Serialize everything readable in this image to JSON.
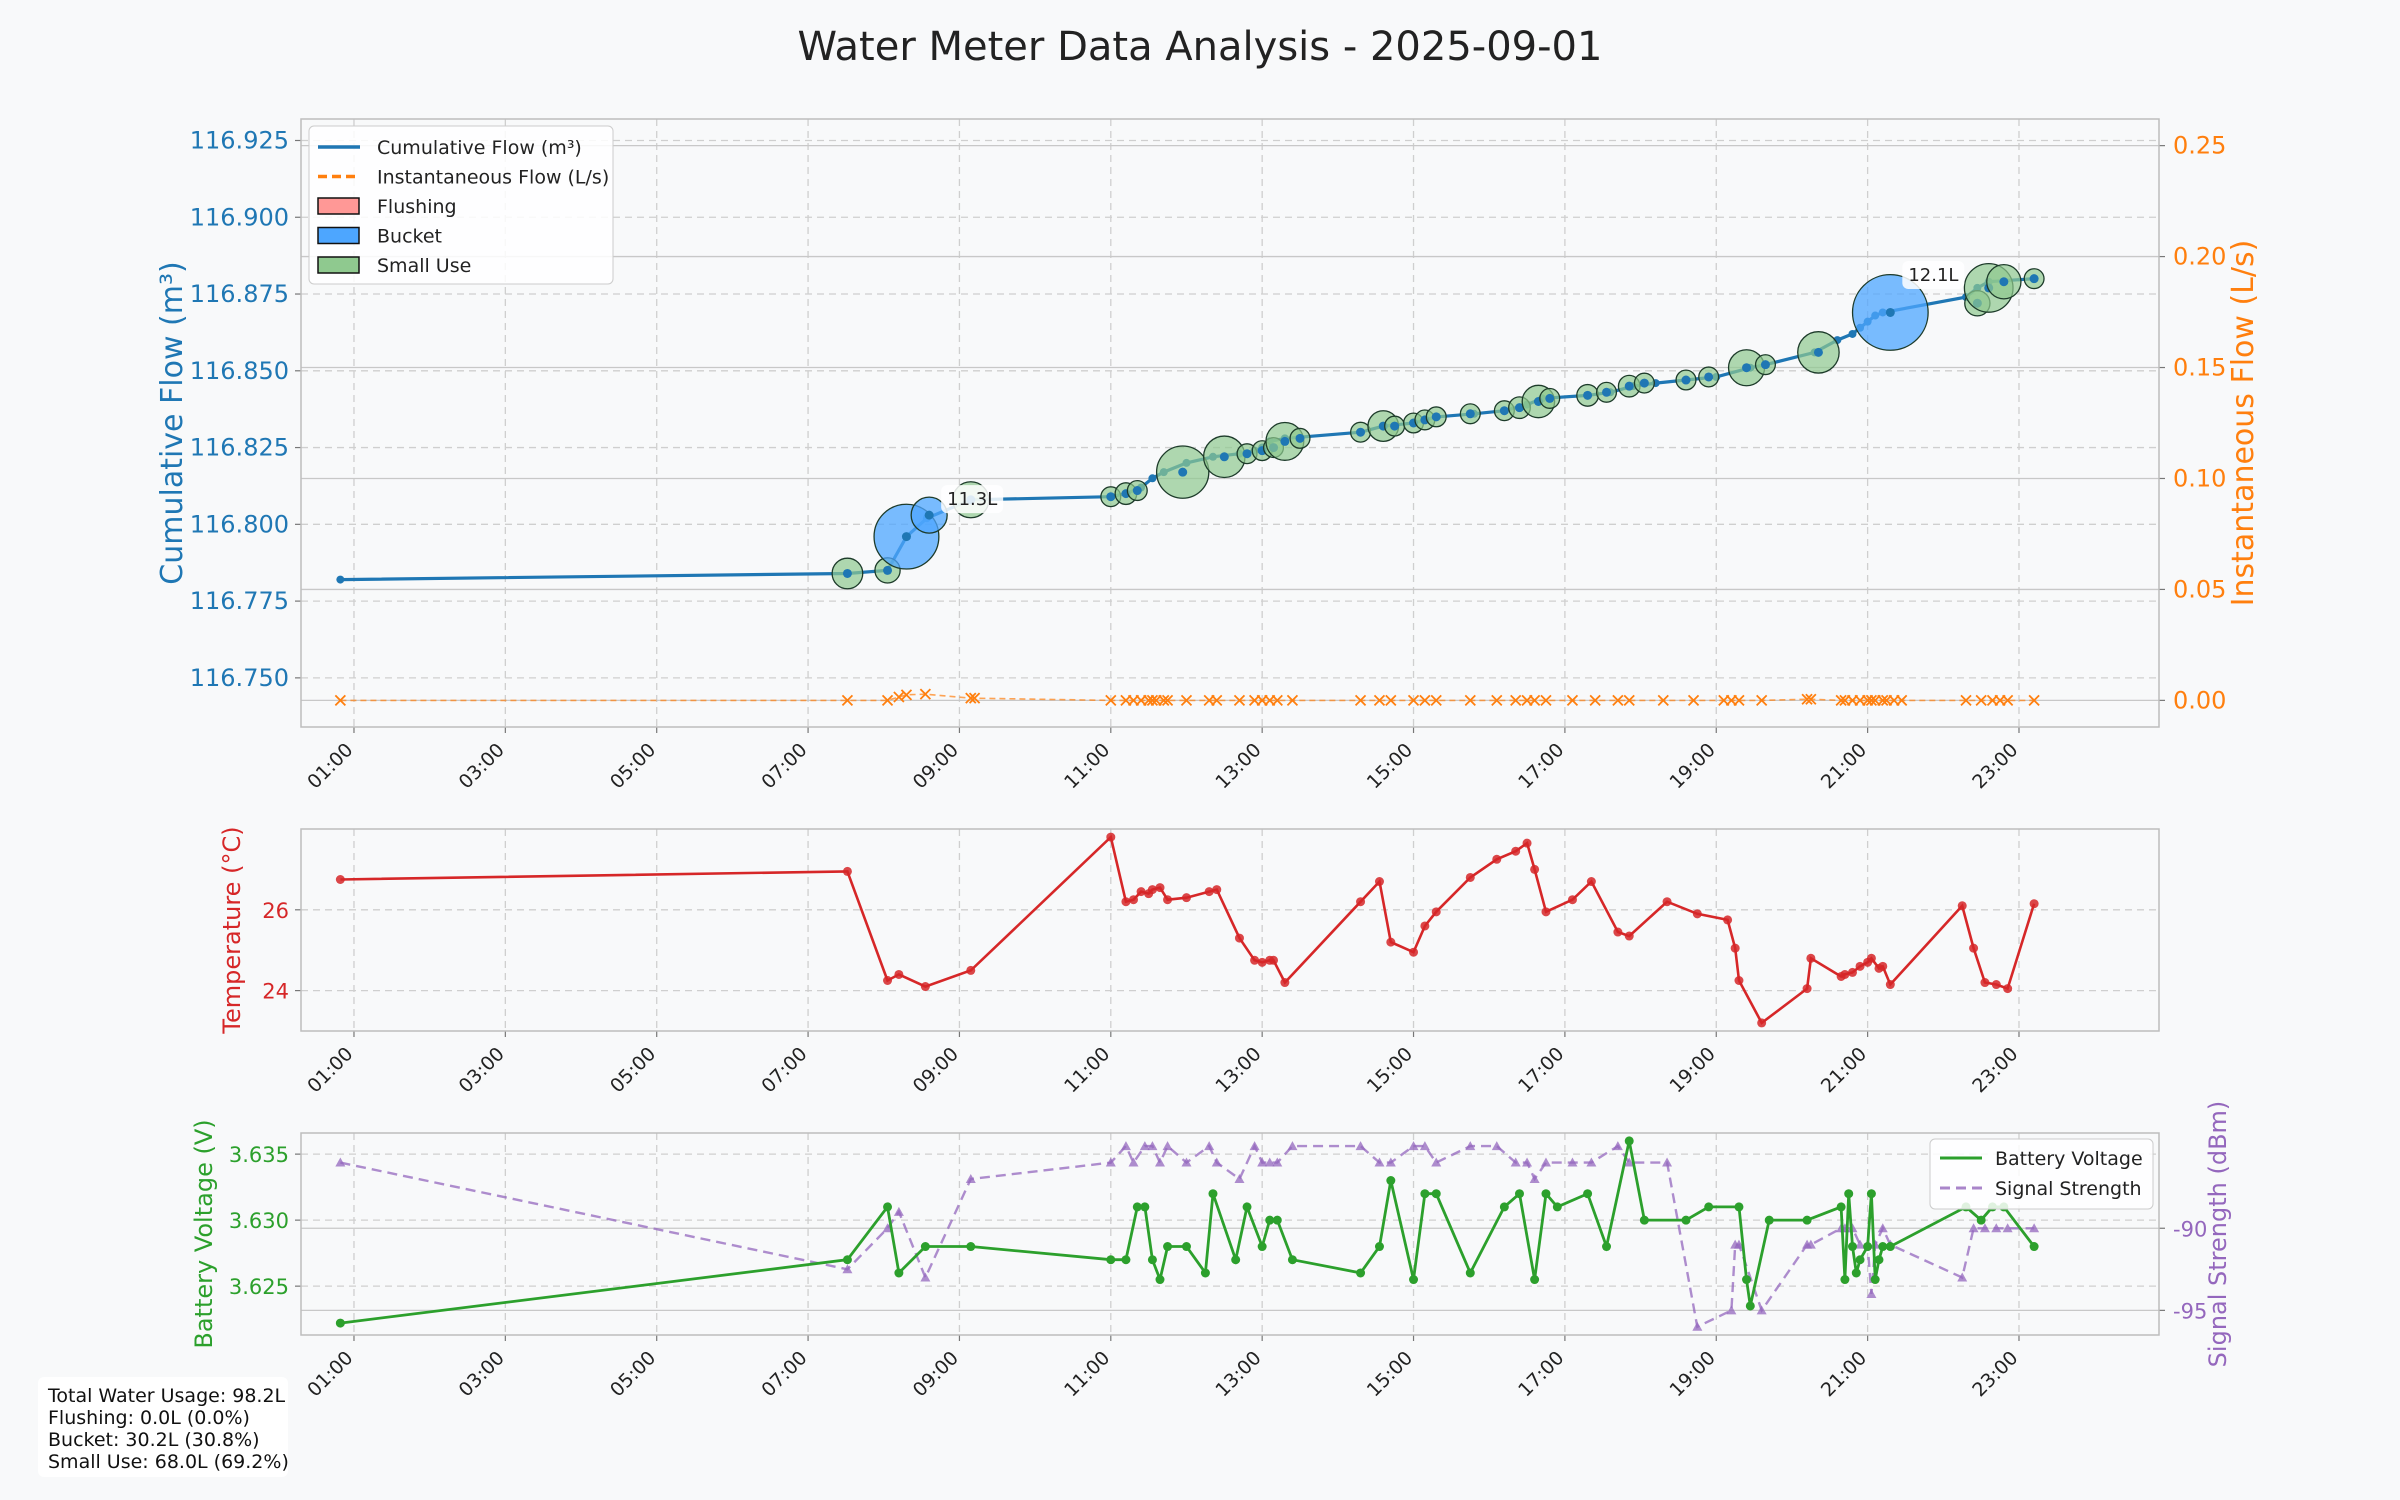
{
  "title": "Water Meter Data Analysis - 2025-09-01",
  "colors": {
    "cumulative": "#1f77b4",
    "instant": "#ff7f0e",
    "temperature": "#d62728",
    "battery": "#2ca02c",
    "signal": "#9467bd",
    "flushing": "#ff9896",
    "bucket": "#4da6ff",
    "small_use": "#8fc98f",
    "background": "#f8f9fa"
  },
  "chart_data": [
    {
      "type": "line",
      "name": "flow",
      "xlabel": "",
      "x_ticks": [
        "01:00",
        "03:00",
        "05:00",
        "07:00",
        "09:00",
        "11:00",
        "13:00",
        "15:00",
        "17:00",
        "19:00",
        "21:00",
        "23:00"
      ],
      "xlim": [
        0.3,
        24.85
      ],
      "ylabel": "Cumulative Flow (m³)",
      "ylim": [
        116.734,
        116.932
      ],
      "y_ticks": [
        "116.750",
        "116.775",
        "116.800",
        "116.825",
        "116.850",
        "116.875",
        "116.900",
        "116.925"
      ],
      "y2label": "Instantaneous Flow (L/s)",
      "y2lim": [
        -0.012,
        0.262
      ],
      "y2_ticks": [
        "0.00",
        "0.05",
        "0.10",
        "0.15",
        "0.20",
        "0.25"
      ],
      "legend": [
        "Cumulative Flow (m³)",
        "Instantaneous Flow (L/s)",
        "Flushing",
        "Bucket",
        "Small Use"
      ],
      "legend_position": "upper left",
      "series": [
        {
          "name": "Cumulative Flow (m³)",
          "x": [
            0.82,
            7.52,
            8.05,
            8.3,
            8.57,
            9.15,
            11.0,
            11.2,
            11.4,
            11.55,
            11.7,
            12.0,
            12.35,
            12.7,
            12.9,
            13.0,
            13.1,
            13.3,
            14.3,
            14.6,
            15.0,
            15.3,
            15.8,
            16.2,
            16.5,
            16.7,
            17.3,
            17.6,
            17.9,
            18.2,
            18.6,
            19.0,
            19.45,
            19.65,
            20.3,
            20.6,
            20.8,
            20.9,
            21.0,
            21.1,
            21.2,
            22.3,
            22.45,
            22.6,
            23.2
          ],
          "values": [
            116.782,
            116.784,
            116.785,
            116.796,
            116.802,
            116.808,
            116.809,
            116.81,
            116.812,
            116.815,
            116.817,
            116.82,
            116.822,
            116.823,
            116.824,
            116.825,
            116.827,
            116.828,
            116.83,
            116.832,
            116.833,
            116.835,
            116.836,
            116.837,
            116.839,
            116.841,
            116.842,
            116.843,
            116.845,
            116.846,
            116.847,
            116.848,
            116.851,
            116.852,
            116.856,
            116.86,
            116.862,
            116.864,
            116.866,
            116.868,
            116.869,
            116.874,
            116.877,
            116.879,
            116.88
          ]
        },
        {
          "name": "Instantaneous Flow (L/s)",
          "axis": "right",
          "marker": "x",
          "x": [
            0.82,
            7.52,
            8.05,
            8.2,
            8.3,
            8.55,
            9.15,
            9.2,
            11.0,
            11.2,
            11.3,
            11.4,
            11.5,
            11.55,
            11.6,
            11.7,
            11.75,
            12.0,
            12.3,
            12.4,
            12.7,
            12.9,
            13.0,
            13.1,
            13.2,
            13.4,
            14.3,
            14.55,
            14.7,
            15.0,
            15.15,
            15.3,
            15.75,
            16.1,
            16.35,
            16.5,
            16.6,
            16.75,
            17.1,
            17.4,
            17.7,
            17.85,
            18.3,
            18.7,
            19.1,
            19.2,
            19.3,
            19.6,
            20.2,
            20.25,
            20.65,
            20.7,
            20.8,
            20.9,
            21.0,
            21.05,
            21.1,
            21.2,
            21.25,
            21.35,
            21.45,
            22.3,
            22.5,
            22.65,
            22.75,
            22.85,
            23.2
          ],
          "values": [
            0.0,
            0.0,
            0.0,
            0.0015,
            0.0025,
            0.0028,
            0.001,
            0.001,
            0.0,
            0.0,
            0.0,
            0.0,
            0.0,
            0.0,
            0.0,
            0.0,
            0.0,
            0.0,
            0.0,
            0.0,
            0.0,
            0.0,
            0.0,
            0.0,
            0.0,
            0.0,
            0.0,
            0.0,
            0.0,
            0.0,
            0.0,
            0.0,
            0.0,
            0.0,
            0.0,
            0.0,
            0.0,
            0.0,
            0.0,
            0.0,
            0.0,
            0.0,
            0.0,
            0.0,
            0.0,
            0.0,
            0.0,
            0.0,
            0.0005,
            0.0005,
            0.0,
            0.0,
            0.0,
            0.0,
            0.0,
            0.0,
            0.0,
            0.0,
            0.0,
            0.0,
            0.0,
            0.0,
            0.0,
            0.0,
            0.0,
            0.0,
            0.0
          ]
        }
      ],
      "usage_events": [
        {
          "x": 7.52,
          "y": 116.784,
          "type": "small_use",
          "size": 0.85
        },
        {
          "x": 8.05,
          "y": 116.785,
          "type": "small_use",
          "size": 0.7
        },
        {
          "x": 8.3,
          "y": 116.796,
          "type": "bucket",
          "size": 1.8
        },
        {
          "x": 8.6,
          "y": 116.803,
          "type": "bucket",
          "size": 1.0
        },
        {
          "x": 9.15,
          "y": 116.808,
          "type": "small_use",
          "size": 1.0
        },
        {
          "x": 11.0,
          "y": 116.809,
          "type": "small_use",
          "size": 0.55
        },
        {
          "x": 11.2,
          "y": 116.81,
          "type": "small_use",
          "size": 0.6
        },
        {
          "x": 11.35,
          "y": 116.811,
          "type": "small_use",
          "size": 0.55
        },
        {
          "x": 11.95,
          "y": 116.817,
          "type": "small_use",
          "size": 1.45
        },
        {
          "x": 12.5,
          "y": 116.822,
          "type": "small_use",
          "size": 1.15
        },
        {
          "x": 12.8,
          "y": 116.823,
          "type": "small_use",
          "size": 0.55
        },
        {
          "x": 13.0,
          "y": 116.824,
          "type": "small_use",
          "size": 0.55
        },
        {
          "x": 13.15,
          "y": 116.825,
          "type": "small_use",
          "size": 0.55
        },
        {
          "x": 13.3,
          "y": 116.827,
          "type": "small_use",
          "size": 1.05
        },
        {
          "x": 13.5,
          "y": 116.828,
          "type": "small_use",
          "size": 0.55
        },
        {
          "x": 14.3,
          "y": 116.83,
          "type": "small_use",
          "size": 0.55
        },
        {
          "x": 14.6,
          "y": 116.832,
          "type": "small_use",
          "size": 0.85
        },
        {
          "x": 14.75,
          "y": 116.832,
          "type": "small_use",
          "size": 0.55
        },
        {
          "x": 15.0,
          "y": 116.833,
          "type": "small_use",
          "size": 0.55
        },
        {
          "x": 15.15,
          "y": 116.834,
          "type": "small_use",
          "size": 0.55
        },
        {
          "x": 15.3,
          "y": 116.835,
          "type": "small_use",
          "size": 0.55
        },
        {
          "x": 15.75,
          "y": 116.836,
          "type": "small_use",
          "size": 0.55
        },
        {
          "x": 16.2,
          "y": 116.837,
          "type": "small_use",
          "size": 0.55
        },
        {
          "x": 16.4,
          "y": 116.838,
          "type": "small_use",
          "size": 0.6
        },
        {
          "x": 16.65,
          "y": 116.84,
          "type": "small_use",
          "size": 0.9
        },
        {
          "x": 16.8,
          "y": 116.841,
          "type": "small_use",
          "size": 0.55
        },
        {
          "x": 17.3,
          "y": 116.842,
          "type": "small_use",
          "size": 0.6
        },
        {
          "x": 17.55,
          "y": 116.843,
          "type": "small_use",
          "size": 0.55
        },
        {
          "x": 17.85,
          "y": 116.845,
          "type": "small_use",
          "size": 0.6
        },
        {
          "x": 18.05,
          "y": 116.846,
          "type": "small_use",
          "size": 0.55
        },
        {
          "x": 18.6,
          "y": 116.847,
          "type": "small_use",
          "size": 0.55
        },
        {
          "x": 18.9,
          "y": 116.848,
          "type": "small_use",
          "size": 0.55
        },
        {
          "x": 19.4,
          "y": 116.851,
          "type": "small_use",
          "size": 1.0
        },
        {
          "x": 19.65,
          "y": 116.852,
          "type": "small_use",
          "size": 0.55
        },
        {
          "x": 20.35,
          "y": 116.856,
          "type": "small_use",
          "size": 1.15
        },
        {
          "x": 21.3,
          "y": 116.869,
          "type": "bucket",
          "size": 2.1
        },
        {
          "x": 22.45,
          "y": 116.872,
          "type": "small_use",
          "size": 0.7
        },
        {
          "x": 22.6,
          "y": 116.877,
          "type": "small_use",
          "size": 1.35
        },
        {
          "x": 22.8,
          "y": 116.879,
          "type": "small_use",
          "size": 0.95
        },
        {
          "x": 23.2,
          "y": 116.88,
          "type": "small_use",
          "size": 0.55
        }
      ],
      "annotations": [
        {
          "text": "11.3L",
          "x": 8.6,
          "y": 116.803
        },
        {
          "text": "12.1L",
          "x": 21.3,
          "y": 116.876
        }
      ]
    },
    {
      "type": "line",
      "name": "temperature",
      "ylabel": "Temperature (°C)",
      "xlim": [
        0.3,
        24.85
      ],
      "x_ticks": [
        "01:00",
        "03:00",
        "05:00",
        "07:00",
        "09:00",
        "11:00",
        "13:00",
        "15:00",
        "17:00",
        "19:00",
        "21:00",
        "23:00"
      ],
      "ylim": [
        23.0,
        28.0
      ],
      "y_ticks": [
        "24",
        "26"
      ],
      "series": [
        {
          "name": "Temperature (°C)",
          "x": [
            0.82,
            7.52,
            8.05,
            8.2,
            8.55,
            9.15,
            11.0,
            11.2,
            11.3,
            11.4,
            11.5,
            11.55,
            11.65,
            11.75,
            12.0,
            12.3,
            12.4,
            12.7,
            12.9,
            13.0,
            13.1,
            13.15,
            13.3,
            14.3,
            14.55,
            14.7,
            15.0,
            15.15,
            15.3,
            15.75,
            16.1,
            16.35,
            16.5,
            16.6,
            16.75,
            17.1,
            17.35,
            17.7,
            17.85,
            18.35,
            18.75,
            19.15,
            19.25,
            19.3,
            19.6,
            20.2,
            20.25,
            20.65,
            20.7,
            20.8,
            20.9,
            21.0,
            21.05,
            21.15,
            21.2,
            21.3,
            22.25,
            22.4,
            22.55,
            22.7,
            22.85,
            23.2
          ],
          "values": [
            26.75,
            26.95,
            24.25,
            24.4,
            24.1,
            24.5,
            27.8,
            26.2,
            26.25,
            26.45,
            26.4,
            26.5,
            26.55,
            26.25,
            26.3,
            26.45,
            26.5,
            25.3,
            24.75,
            24.7,
            24.75,
            24.75,
            24.2,
            26.2,
            26.7,
            25.2,
            24.95,
            25.6,
            25.95,
            26.8,
            27.25,
            27.45,
            27.65,
            27.0,
            25.95,
            26.25,
            26.7,
            25.45,
            25.35,
            26.2,
            25.9,
            25.75,
            25.05,
            24.25,
            23.2,
            24.05,
            24.8,
            24.35,
            24.4,
            24.45,
            24.6,
            24.7,
            24.8,
            24.55,
            24.6,
            24.15,
            26.1,
            25.05,
            24.2,
            24.15,
            24.05,
            26.15
          ]
        }
      ]
    },
    {
      "type": "line",
      "name": "battery_signal",
      "xlim": [
        0.3,
        24.85
      ],
      "x_ticks": [
        "01:00",
        "03:00",
        "05:00",
        "07:00",
        "09:00",
        "11:00",
        "13:00",
        "15:00",
        "17:00",
        "19:00",
        "21:00",
        "23:00"
      ],
      "ylabel": "Battery Voltage (V)",
      "ylim": [
        3.6213,
        3.6366
      ],
      "y_ticks": [
        "3.625",
        "3.630",
        "3.635"
      ],
      "y2label": "Signal Strength (dBm)",
      "y2lim": [
        -96.5,
        -84.2
      ],
      "y2_ticks": [
        "-95",
        "-90"
      ],
      "legend": [
        "Battery Voltage",
        "Signal Strength"
      ],
      "legend_position": "upper right",
      "series": [
        {
          "name": "Battery Voltage",
          "x": [
            0.82,
            7.52,
            8.05,
            8.2,
            8.55,
            9.15,
            11.0,
            11.2,
            11.35,
            11.45,
            11.55,
            11.65,
            11.75,
            12.0,
            12.25,
            12.35,
            12.65,
            12.8,
            13.0,
            13.1,
            13.2,
            13.4,
            14.3,
            14.55,
            14.7,
            15.0,
            15.15,
            15.3,
            15.75,
            16.2,
            16.4,
            16.6,
            16.75,
            16.9,
            17.3,
            17.55,
            17.85,
            18.05,
            18.6,
            18.9,
            19.3,
            19.4,
            19.45,
            19.7,
            20.2,
            20.65,
            20.7,
            20.75,
            20.8,
            20.85,
            20.9,
            21.0,
            21.05,
            21.1,
            21.15,
            21.2,
            21.3,
            22.3,
            22.5,
            22.65,
            22.8,
            23.2
          ],
          "values": [
            3.6222,
            3.627,
            3.631,
            3.626,
            3.628,
            3.628,
            3.627,
            3.627,
            3.631,
            3.631,
            3.627,
            3.6255,
            3.628,
            3.628,
            3.626,
            3.632,
            3.627,
            3.631,
            3.628,
            3.63,
            3.63,
            3.627,
            3.626,
            3.628,
            3.633,
            3.6255,
            3.632,
            3.632,
            3.626,
            3.631,
            3.632,
            3.6255,
            3.632,
            3.631,
            3.632,
            3.628,
            3.636,
            3.63,
            3.63,
            3.631,
            3.631,
            3.6255,
            3.6235,
            3.63,
            3.63,
            3.631,
            3.6255,
            3.632,
            3.628,
            3.626,
            3.627,
            3.628,
            3.632,
            3.6255,
            3.627,
            3.628,
            3.628,
            3.631,
            3.63,
            3.631,
            3.631,
            3.628
          ]
        },
        {
          "name": "Signal Strength",
          "axis": "right",
          "marker": "triangle",
          "x": [
            0.82,
            7.52,
            8.05,
            8.2,
            8.55,
            9.15,
            11.0,
            11.2,
            11.3,
            11.45,
            11.55,
            11.65,
            11.75,
            12.0,
            12.3,
            12.4,
            12.7,
            12.9,
            13.0,
            13.1,
            13.2,
            13.4,
            14.3,
            14.55,
            14.7,
            15.0,
            15.15,
            15.3,
            15.75,
            16.1,
            16.35,
            16.5,
            16.6,
            16.75,
            17.1,
            17.35,
            17.7,
            17.85,
            18.35,
            18.75,
            19.2,
            19.25,
            19.3,
            19.6,
            20.2,
            20.25,
            20.65,
            20.7,
            20.8,
            20.9,
            21.0,
            21.05,
            21.1,
            21.2,
            21.3,
            22.25,
            22.4,
            22.55,
            22.7,
            22.85,
            23.2
          ],
          "values": [
            -86.0,
            -92.5,
            -90.0,
            -89.0,
            -93.0,
            -87.0,
            -86.0,
            -85.0,
            -86.0,
            -85.0,
            -85.0,
            -86.0,
            -85.0,
            -86.0,
            -85.0,
            -86.0,
            -87.0,
            -85.0,
            -86.0,
            -86.0,
            -86.0,
            -85.0,
            -85.0,
            -86.0,
            -86.0,
            -85.0,
            -85.0,
            -86.0,
            -85.0,
            -85.0,
            -86.0,
            -86.0,
            -87.0,
            -86.0,
            -86.0,
            -86.0,
            -85.0,
            -86.0,
            -86.0,
            -96.0,
            -95.0,
            -91.0,
            -91.0,
            -95.0,
            -91.0,
            -91.0,
            -90.0,
            -90.0,
            -90.0,
            -91.0,
            -91.0,
            -94.0,
            -91.0,
            -90.0,
            -91.0,
            -93.0,
            -90.0,
            -90.0,
            -90.0,
            -90.0,
            -90.0
          ]
        }
      ]
    }
  ],
  "summary": {
    "total": "Total Water Usage: 98.2L",
    "flushing": "Flushing: 0.0L (0.0%)",
    "bucket": "Bucket: 30.2L (30.8%)",
    "small_use": "Small Use: 68.0L (69.2%)"
  }
}
